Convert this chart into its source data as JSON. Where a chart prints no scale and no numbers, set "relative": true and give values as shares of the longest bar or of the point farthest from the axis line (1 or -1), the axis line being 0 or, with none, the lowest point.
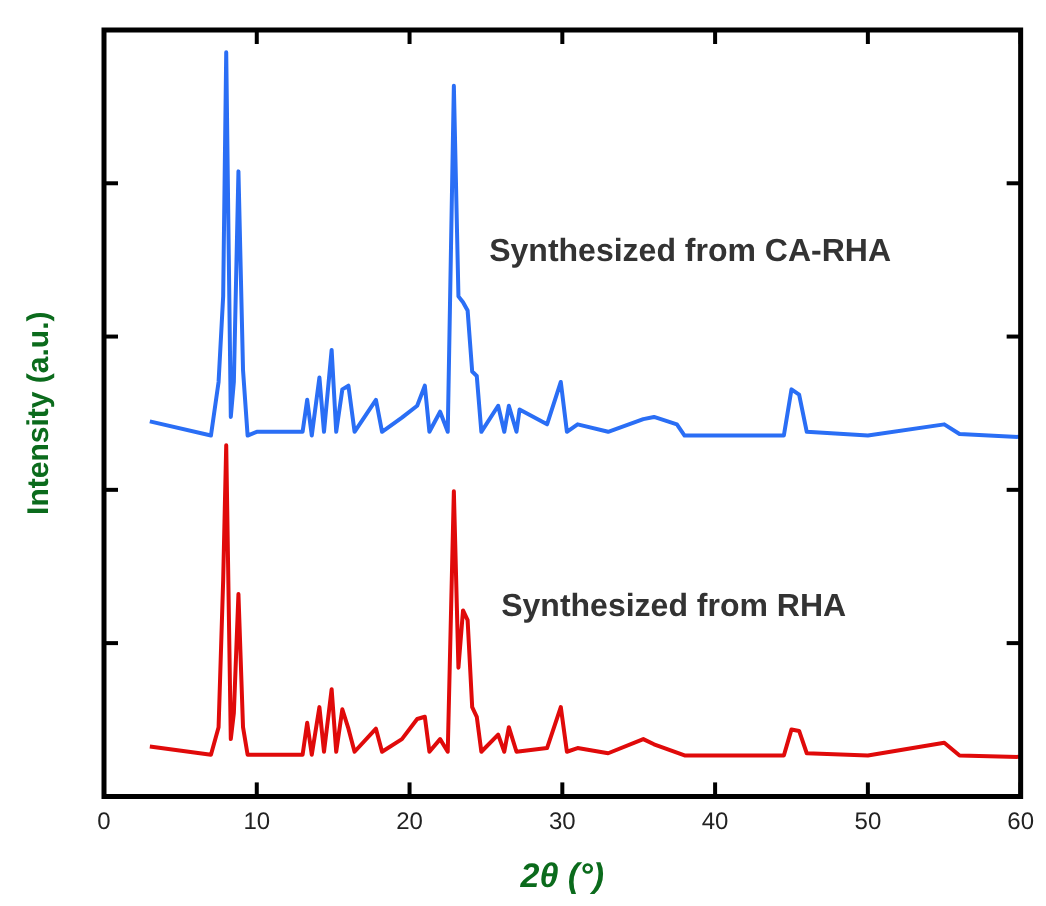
{
  "chart_data": {
    "type": "line",
    "relative": true,
    "xlabel": "2θ (°)",
    "ylabel": "Intensity (a.u.)",
    "xlim": [
      0,
      60
    ],
    "xticks": [
      0,
      10,
      20,
      30,
      40,
      50,
      60
    ],
    "tick_labels": "x",
    "grid": false,
    "legend": false,
    "marker": "none",
    "line_style": "solid",
    "series": [
      {
        "name": "Synthesized from CA-RHA",
        "color": "#2a6ef5",
        "x": [
          3,
          7,
          7.5,
          7.8,
          8.0,
          8.3,
          8.5,
          8.8,
          9.1,
          9.4,
          10,
          13,
          13.3,
          13.6,
          14.1,
          14.4,
          14.9,
          15.2,
          15.6,
          16.0,
          16.4,
          17.8,
          18.2,
          19.5,
          20.5,
          21,
          21.3,
          22.0,
          22.5,
          22.9,
          23.2,
          23.5,
          23.8,
          24.1,
          24.4,
          24.7,
          25.8,
          26.2,
          26.5,
          27,
          27.2,
          29.0,
          29.9,
          30.3,
          31,
          33,
          35.3,
          36,
          37.5,
          38,
          44.5,
          45.0,
          45.5,
          46,
          50,
          55,
          56,
          60
        ],
        "values": [
          0.504,
          0.485,
          0.557,
          0.672,
          1.0,
          0.51,
          0.557,
          0.84,
          0.573,
          0.485,
          0.49,
          0.49,
          0.533,
          0.485,
          0.563,
          0.49,
          0.6,
          0.49,
          0.547,
          0.552,
          0.49,
          0.533,
          0.49,
          0.509,
          0.525,
          0.552,
          0.49,
          0.517,
          0.49,
          0.955,
          0.672,
          0.664,
          0.653,
          0.571,
          0.565,
          0.49,
          0.525,
          0.49,
          0.525,
          0.49,
          0.52,
          0.5,
          0.557,
          0.49,
          0.5,
          0.49,
          0.507,
          0.51,
          0.5,
          0.485,
          0.485,
          0.547,
          0.54,
          0.49,
          0.485,
          0.5,
          0.487,
          0.483
        ]
      },
      {
        "name": "Synthesized from RHA",
        "color": "#e00a0a",
        "x": [
          3,
          7,
          7.5,
          7.8,
          8.0,
          8.3,
          8.5,
          8.8,
          9.1,
          9.4,
          10,
          13,
          13.3,
          13.6,
          14.1,
          14.4,
          14.9,
          15.2,
          15.6,
          16.0,
          16.4,
          17.8,
          18.2,
          19.5,
          20.5,
          21,
          21.3,
          22.0,
          22.5,
          22.9,
          23.2,
          23.5,
          23.8,
          24.1,
          24.4,
          24.7,
          25.8,
          26.2,
          26.5,
          27,
          29.0,
          29.9,
          30.3,
          31,
          33,
          35.3,
          36,
          38,
          44.5,
          45.0,
          45.5,
          46,
          50,
          55,
          56,
          60
        ],
        "values": [
          0.067,
          0.056,
          0.093,
          0.29,
          0.472,
          0.077,
          0.112,
          0.272,
          0.093,
          0.056,
          0.056,
          0.056,
          0.099,
          0.056,
          0.12,
          0.06,
          0.144,
          0.06,
          0.117,
          0.091,
          0.06,
          0.091,
          0.06,
          0.077,
          0.104,
          0.107,
          0.06,
          0.077,
          0.06,
          0.41,
          0.173,
          0.25,
          0.237,
          0.12,
          0.107,
          0.06,
          0.083,
          0.06,
          0.093,
          0.06,
          0.065,
          0.12,
          0.06,
          0.065,
          0.058,
          0.077,
          0.07,
          0.055,
          0.055,
          0.09,
          0.088,
          0.058,
          0.055,
          0.072,
          0.055,
          0.053
        ]
      }
    ]
  }
}
